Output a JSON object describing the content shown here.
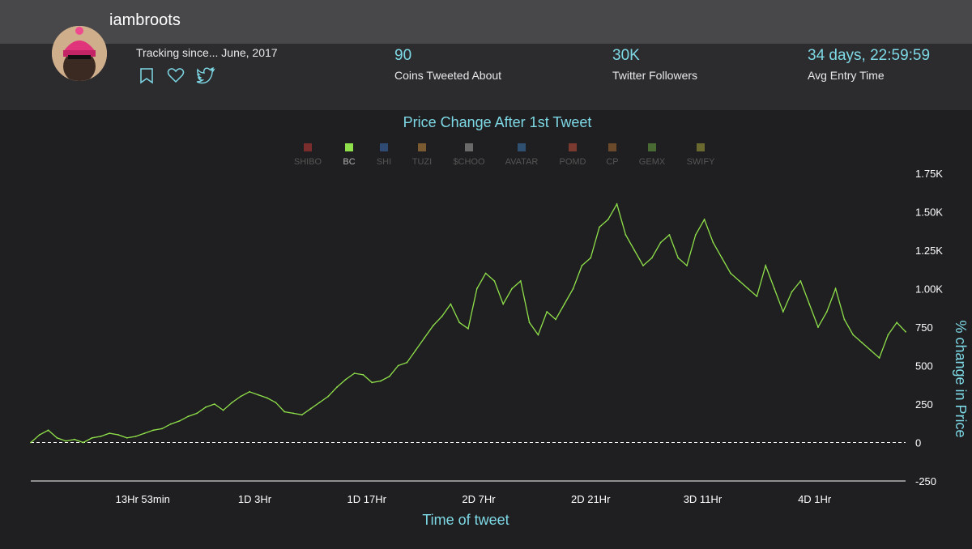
{
  "profile": {
    "username": "iambroots",
    "tracking_since": "Tracking since... June, 2017",
    "icons": [
      "bookmark-icon",
      "heart-icon",
      "twitter-icon"
    ]
  },
  "stats": [
    {
      "value": "90",
      "label": "Coins Tweeted About"
    },
    {
      "value": "30K",
      "label": "Twitter Followers"
    },
    {
      "value": "34 days, 22:59:59",
      "label": "Avg Entry Time"
    }
  ],
  "colors": {
    "accent": "#7ed9e6",
    "series": "#8fe04a"
  },
  "chart_data": {
    "type": "line",
    "title": "Price Change After 1st Tweet",
    "xlabel": "Time of tweet",
    "ylabel": "% change in Price",
    "ylim": [
      -250,
      1750
    ],
    "yticks": [
      {
        "v": 1750,
        "label": "1.75K"
      },
      {
        "v": 1500,
        "label": "1.50K"
      },
      {
        "v": 1250,
        "label": "1.25K"
      },
      {
        "v": 1000,
        "label": "1.00K"
      },
      {
        "v": 750,
        "label": "750"
      },
      {
        "v": 500,
        "label": "500"
      },
      {
        "v": 250,
        "label": "250"
      },
      {
        "v": 0,
        "label": "0"
      },
      {
        "v": -250,
        "label": "-250"
      }
    ],
    "xlim": [
      0,
      100
    ],
    "xticks": [
      {
        "v": 12.8,
        "label": "13Hr 53min"
      },
      {
        "v": 25.6,
        "label": "1D 3Hr"
      },
      {
        "v": 38.4,
        "label": "1D 17Hr"
      },
      {
        "v": 51.2,
        "label": "2D 7Hr"
      },
      {
        "v": 64.0,
        "label": "2D 21Hr"
      },
      {
        "v": 76.8,
        "label": "3D 11Hr"
      },
      {
        "v": 89.6,
        "label": "4D 1Hr"
      }
    ],
    "legend": [
      {
        "name": "SHIBO",
        "color": "#7a2d2d",
        "active": false
      },
      {
        "name": "BC",
        "color": "#8fe04a",
        "active": true
      },
      {
        "name": "SHI",
        "color": "#2f4a73",
        "active": false
      },
      {
        "name": "TUZI",
        "color": "#7a5a30",
        "active": false
      },
      {
        "name": "$CHOO",
        "color": "#6a6a6a",
        "active": false
      },
      {
        "name": "AVATAR",
        "color": "#2f5070",
        "active": false
      },
      {
        "name": "POMD",
        "color": "#7a3a30",
        "active": false
      },
      {
        "name": "CP",
        "color": "#6a4a2a",
        "active": false
      },
      {
        "name": "GEMX",
        "color": "#4a6a34",
        "active": false
      },
      {
        "name": "SWIFY",
        "color": "#6a6a30",
        "active": false
      }
    ],
    "series": [
      {
        "name": "BC",
        "x": [
          0,
          1,
          2,
          3,
          4,
          5,
          6,
          7,
          8,
          9,
          10,
          11,
          12,
          13,
          14,
          15,
          16,
          17,
          18,
          19,
          20,
          21,
          22,
          23,
          24,
          25,
          26,
          27,
          28,
          29,
          30,
          31,
          32,
          33,
          34,
          35,
          36,
          37,
          38,
          39,
          40,
          41,
          42,
          43,
          44,
          45,
          46,
          47,
          48,
          49,
          50,
          51,
          52,
          53,
          54,
          55,
          56,
          57,
          58,
          59,
          60,
          61,
          62,
          63,
          64,
          65,
          66,
          67,
          68,
          69,
          70,
          71,
          72,
          73,
          74,
          75,
          76,
          77,
          78,
          79,
          80,
          81,
          82,
          83,
          84,
          85,
          86,
          87,
          88,
          89,
          90,
          91,
          92,
          93,
          94,
          95,
          96,
          97,
          98,
          99,
          100
        ],
        "values": [
          0,
          50,
          80,
          30,
          10,
          20,
          0,
          30,
          40,
          60,
          50,
          30,
          40,
          60,
          80,
          90,
          120,
          140,
          170,
          190,
          230,
          250,
          210,
          260,
          300,
          330,
          310,
          290,
          260,
          200,
          190,
          180,
          220,
          260,
          300,
          360,
          410,
          450,
          440,
          390,
          400,
          430,
          500,
          520,
          600,
          680,
          760,
          820,
          900,
          780,
          740,
          1000,
          1100,
          1050,
          900,
          1000,
          1050,
          780,
          700,
          850,
          800,
          900,
          1000,
          1150,
          1200,
          1400,
          1450,
          1550,
          1350,
          1250,
          1150,
          1200,
          1300,
          1350,
          1200,
          1150,
          1350,
          1450,
          1300,
          1200,
          1100,
          1050,
          1000,
          950,
          1150,
          1000,
          850,
          980,
          1050,
          900,
          750,
          850,
          1000,
          800,
          700,
          650,
          600,
          550,
          700,
          780,
          720
        ]
      }
    ]
  }
}
